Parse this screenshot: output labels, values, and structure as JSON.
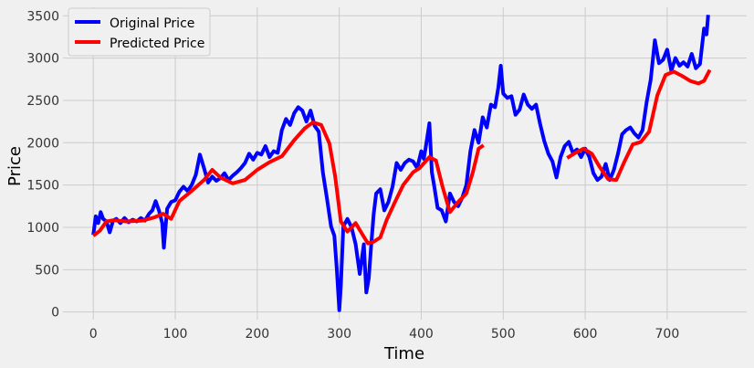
{
  "chart_data": {
    "type": "line",
    "title": "",
    "xlabel": "Time",
    "ylabel": "Price",
    "xlim": [
      -37,
      797
    ],
    "ylim": [
      -90,
      3600
    ],
    "x_ticks": [
      0,
      100,
      200,
      300,
      400,
      500,
      600,
      700
    ],
    "y_ticks": [
      0,
      500,
      1000,
      1500,
      2000,
      2500,
      3000,
      3500
    ],
    "grid": true,
    "legend": "top-left",
    "colors": {
      "background": "#f0f0f0",
      "original": "#0000ff",
      "predicted": "#ff0000",
      "grid": "#cbcbcb"
    },
    "series": [
      {
        "name": "Original Price",
        "color": "#0000ff",
        "segments": [
          [
            [
              0,
              910
            ],
            [
              3,
              1130
            ],
            [
              6,
              1050
            ],
            [
              9,
              1180
            ],
            [
              12,
              1100
            ],
            [
              16,
              1070
            ],
            [
              20,
              940
            ],
            [
              24,
              1080
            ],
            [
              28,
              1100
            ],
            [
              33,
              1050
            ],
            [
              38,
              1110
            ],
            [
              43,
              1060
            ],
            [
              48,
              1090
            ],
            [
              53,
              1070
            ],
            [
              58,
              1110
            ],
            [
              63,
              1080
            ],
            [
              68,
              1160
            ],
            [
              72,
              1200
            ],
            [
              76,
              1310
            ],
            [
              80,
              1200
            ],
            [
              84,
              1050
            ],
            [
              86,
              760
            ],
            [
              90,
              1220
            ],
            [
              95,
              1300
            ],
            [
              100,
              1320
            ],
            [
              105,
              1420
            ],
            [
              110,
              1480
            ],
            [
              115,
              1430
            ],
            [
              120,
              1500
            ],
            [
              125,
              1620
            ],
            [
              130,
              1860
            ],
            [
              135,
              1700
            ],
            [
              140,
              1530
            ],
            [
              145,
              1600
            ],
            [
              150,
              1550
            ],
            [
              155,
              1580
            ],
            [
              160,
              1640
            ],
            [
              165,
              1560
            ],
            [
              170,
              1610
            ],
            [
              175,
              1650
            ],
            [
              180,
              1700
            ],
            [
              185,
              1760
            ],
            [
              190,
              1870
            ],
            [
              195,
              1800
            ],
            [
              200,
              1880
            ],
            [
              205,
              1860
            ],
            [
              210,
              1960
            ],
            [
              215,
              1830
            ],
            [
              220,
              1900
            ],
            [
              225,
              1880
            ],
            [
              230,
              2150
            ],
            [
              235,
              2280
            ],
            [
              240,
              2210
            ],
            [
              245,
              2350
            ],
            [
              250,
              2420
            ],
            [
              255,
              2380
            ],
            [
              260,
              2250
            ],
            [
              265,
              2380
            ],
            [
              270,
              2200
            ],
            [
              275,
              2130
            ],
            [
              280,
              1650
            ],
            [
              285,
              1340
            ],
            [
              290,
              1010
            ],
            [
              294,
              900
            ],
            [
              297,
              500
            ],
            [
              300,
              20
            ],
            [
              302,
              310
            ],
            [
              305,
              1010
            ],
            [
              310,
              1100
            ],
            [
              315,
              1000
            ],
            [
              320,
              800
            ],
            [
              325,
              450
            ],
            [
              330,
              800
            ],
            [
              333,
              230
            ],
            [
              336,
              400
            ],
            [
              339,
              800
            ],
            [
              342,
              1160
            ],
            [
              345,
              1400
            ],
            [
              350,
              1450
            ],
            [
              355,
              1200
            ],
            [
              360,
              1300
            ],
            [
              365,
              1480
            ],
            [
              370,
              1760
            ],
            [
              375,
              1680
            ],
            [
              380,
              1760
            ],
            [
              385,
              1800
            ],
            [
              390,
              1780
            ],
            [
              395,
              1700
            ],
            [
              400,
              1900
            ],
            [
              403,
              1810
            ],
            [
              405,
              1920
            ],
            [
              410,
              2230
            ],
            [
              413,
              1650
            ],
            [
              416,
              1480
            ],
            [
              420,
              1230
            ],
            [
              425,
              1200
            ],
            [
              430,
              1070
            ],
            [
              435,
              1400
            ],
            [
              440,
              1300
            ],
            [
              445,
              1250
            ],
            [
              450,
              1350
            ],
            [
              455,
              1500
            ],
            [
              460,
              1900
            ],
            [
              465,
              2150
            ],
            [
              470,
              2000
            ],
            [
              475,
              2300
            ],
            [
              480,
              2180
            ],
            [
              485,
              2450
            ],
            [
              490,
              2420
            ],
            [
              494,
              2650
            ],
            [
              497,
              2910
            ],
            [
              500,
              2580
            ],
            [
              505,
              2530
            ],
            [
              510,
              2550
            ],
            [
              515,
              2330
            ],
            [
              520,
              2390
            ],
            [
              525,
              2570
            ],
            [
              530,
              2450
            ],
            [
              535,
              2400
            ],
            [
              540,
              2450
            ],
            [
              545,
              2220
            ],
            [
              550,
              2020
            ],
            [
              555,
              1870
            ],
            [
              560,
              1780
            ],
            [
              565,
              1590
            ],
            [
              570,
              1830
            ],
            [
              575,
              1960
            ],
            [
              580,
              2010
            ],
            [
              585,
              1880
            ],
            [
              590,
              1920
            ],
            [
              595,
              1830
            ],
            [
              600,
              1930
            ],
            [
              605,
              1830
            ],
            [
              610,
              1640
            ],
            [
              615,
              1560
            ],
            [
              620,
              1600
            ],
            [
              625,
              1750
            ],
            [
              630,
              1560
            ],
            [
              635,
              1680
            ],
            [
              640,
              1870
            ],
            [
              645,
              2100
            ],
            [
              650,
              2150
            ],
            [
              655,
              2180
            ],
            [
              660,
              2110
            ],
            [
              665,
              2060
            ],
            [
              670,
              2150
            ],
            [
              675,
              2480
            ],
            [
              680,
              2750
            ],
            [
              685,
              3210
            ],
            [
              690,
              2940
            ],
            [
              695,
              2980
            ],
            [
              700,
              3100
            ],
            [
              705,
              2850
            ],
            [
              710,
              3000
            ],
            [
              715,
              2910
            ],
            [
              720,
              2950
            ],
            [
              725,
              2900
            ],
            [
              730,
              3050
            ],
            [
              735,
              2880
            ],
            [
              740,
              2930
            ],
            [
              745,
              3350
            ],
            [
              748,
              3280
            ],
            [
              750,
              3510
            ]
          ]
        ]
      },
      {
        "name": "Predicted Price",
        "color": "#ff0000",
        "segments": [
          [
            [
              0,
              900
            ],
            [
              8,
              960
            ],
            [
              16,
              1070
            ],
            [
              25,
              1085
            ],
            [
              40,
              1070
            ],
            [
              60,
              1080
            ],
            [
              75,
              1120
            ],
            [
              85,
              1160
            ],
            [
              95,
              1100
            ],
            [
              105,
              1310
            ],
            [
              120,
              1430
            ],
            [
              135,
              1560
            ],
            [
              145,
              1680
            ],
            [
              155,
              1590
            ],
            [
              170,
              1520
            ],
            [
              185,
              1560
            ],
            [
              200,
              1680
            ],
            [
              215,
              1770
            ],
            [
              230,
              1840
            ],
            [
              245,
              2030
            ],
            [
              258,
              2170
            ],
            [
              268,
              2240
            ],
            [
              278,
              2210
            ],
            [
              288,
              1990
            ],
            [
              295,
              1600
            ],
            [
              302,
              1070
            ],
            [
              310,
              950
            ],
            [
              320,
              1050
            ],
            [
              328,
              920
            ],
            [
              335,
              810
            ],
            [
              342,
              830
            ],
            [
              350,
              880
            ],
            [
              358,
              1090
            ],
            [
              368,
              1300
            ],
            [
              378,
              1500
            ],
            [
              390,
              1650
            ],
            [
              398,
              1700
            ],
            [
              410,
              1830
            ],
            [
              418,
              1790
            ],
            [
              426,
              1480
            ],
            [
              435,
              1180
            ],
            [
              445,
              1300
            ],
            [
              455,
              1400
            ],
            [
              463,
              1650
            ],
            [
              470,
              1930
            ],
            [
              476,
              1970
            ]
          ],
          [
            [
              578,
              1820
            ],
            [
              588,
              1880
            ],
            [
              598,
              1930
            ],
            [
              608,
              1870
            ],
            [
              618,
              1710
            ],
            [
              628,
              1570
            ],
            [
              638,
              1560
            ],
            [
              648,
              1780
            ],
            [
              658,
              1980
            ],
            [
              668,
              2010
            ],
            [
              678,
              2130
            ],
            [
              688,
              2560
            ],
            [
              698,
              2800
            ],
            [
              708,
              2840
            ],
            [
              718,
              2790
            ],
            [
              728,
              2730
            ],
            [
              738,
              2700
            ],
            [
              745,
              2730
            ],
            [
              752,
              2860
            ]
          ]
        ]
      }
    ]
  }
}
